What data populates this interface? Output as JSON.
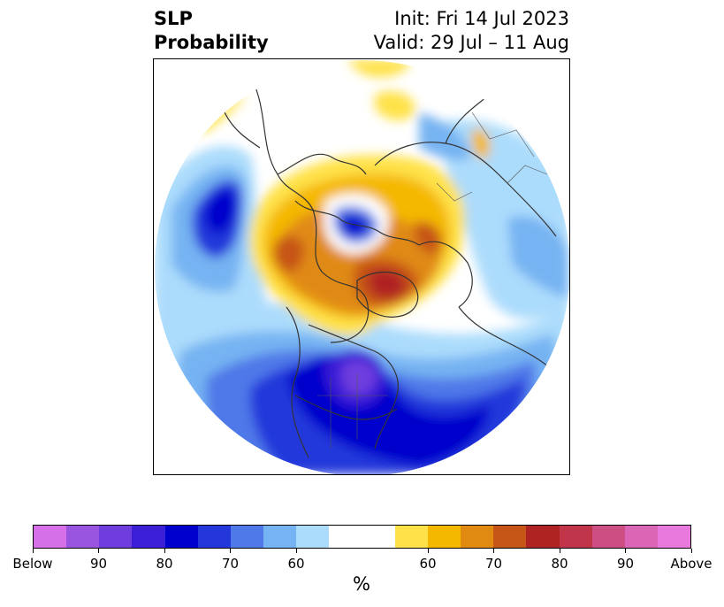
{
  "title": {
    "variable": "SLP",
    "product": "Probability",
    "init": "Init: Fri 14 Jul 2023",
    "valid": "Valid: 29 Jul – 11 Aug"
  },
  "map": {
    "projection": "north-polar-stereographic",
    "region": "Northern Hemisphere",
    "coastline_color": "#333333"
  },
  "colorbar": {
    "colors": [
      "#d670e8",
      "#9a55e0",
      "#6f3dde",
      "#3a1fd6",
      "#0000cc",
      "#2437da",
      "#4f78e8",
      "#76b3f2",
      "#acdcfc",
      "#ffffff",
      "#ffffff",
      "#ffe24a",
      "#f4b800",
      "#e08a12",
      "#c65518",
      "#b02323",
      "#c0354a",
      "#cc4e82",
      "#dc66b6",
      "#e87ade"
    ],
    "tick_labels": [
      "Below",
      "90",
      "80",
      "70",
      "60",
      "60",
      "70",
      "80",
      "90",
      "Above"
    ],
    "unit": "%"
  }
}
